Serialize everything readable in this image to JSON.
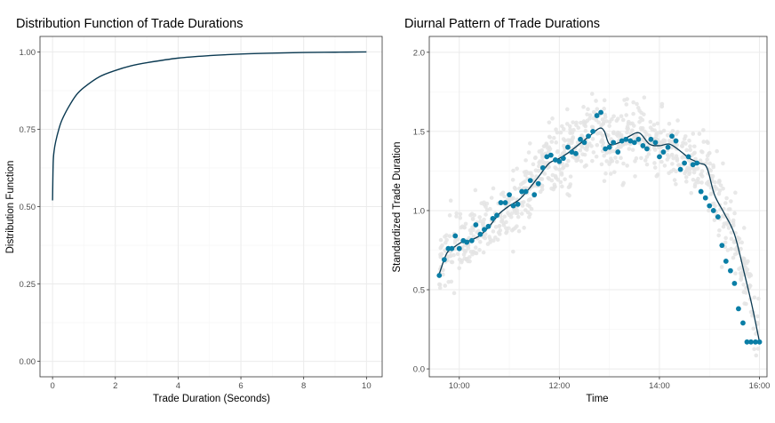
{
  "chart_data": [
    {
      "type": "line",
      "title": "Distribution Function of Trade Durations",
      "xlabel": "Trade Duration (Seconds)",
      "ylabel": "Distribution Function",
      "xlim": [
        -0.4,
        10.5
      ],
      "ylim": [
        -0.05,
        1.05
      ],
      "x_ticks": [
        0,
        2,
        4,
        6,
        8,
        10
      ],
      "x_tick_labels": [
        "0",
        "2",
        "4",
        "6",
        "8",
        "10"
      ],
      "y_ticks": [
        0,
        0.25,
        0.5,
        0.75,
        1.0
      ],
      "y_tick_labels": [
        "0.00",
        "0.25",
        "0.50",
        "0.75",
        "1.00"
      ],
      "grid": true,
      "line_color": "#0b3a52",
      "series": [
        {
          "x": [
            0,
            0.02,
            0.05,
            0.1,
            0.2,
            0.3,
            0.5,
            0.75,
            1,
            1.5,
            2,
            2.5,
            3,
            4,
            5,
            6,
            7,
            8,
            9,
            10
          ],
          "y": [
            0.52,
            0.64,
            0.68,
            0.71,
            0.75,
            0.78,
            0.82,
            0.86,
            0.885,
            0.92,
            0.94,
            0.955,
            0.965,
            0.98,
            0.988,
            0.993,
            0.996,
            0.998,
            0.999,
            1.0
          ]
        }
      ]
    },
    {
      "type": "scatter",
      "title": "Diurnal Pattern of Trade Durations",
      "xlabel": "Time",
      "ylabel": "Standardized Trade Duration",
      "xlim": [
        9.4,
        16.15
      ],
      "ylim": [
        -0.05,
        2.1
      ],
      "x_ticks": [
        10,
        12,
        14,
        16
      ],
      "x_tick_labels": [
        "10:00",
        "12:00",
        "14:00",
        "16:00"
      ],
      "y_ticks": [
        0,
        0.5,
        1.0,
        1.5,
        2.0
      ],
      "y_tick_labels": [
        "0.0",
        "0.5",
        "1.0",
        "1.5",
        "2.0"
      ],
      "grid": true,
      "point_color": "#0a7ea6",
      "line_color": "#0b3a52",
      "background_color": "#e4e4e4",
      "background_note_hidden": "",
      "series": [
        {
          "kind": "points",
          "x": [
            9.6,
            9.7,
            9.78,
            9.85,
            9.92,
            10.0,
            10.08,
            10.15,
            10.25,
            10.33,
            10.42,
            10.5,
            10.58,
            10.67,
            10.75,
            10.83,
            10.92,
            11.0,
            11.08,
            11.17,
            11.25,
            11.33,
            11.42,
            11.5,
            11.58,
            11.67,
            11.75,
            11.83,
            11.92,
            12.0,
            12.08,
            12.17,
            12.25,
            12.33,
            12.42,
            12.5,
            12.58,
            12.67,
            12.75,
            12.83,
            12.92,
            13.0,
            13.08,
            13.17,
            13.25,
            13.33,
            13.42,
            13.5,
            13.58,
            13.67,
            13.75,
            13.83,
            13.92,
            14.0,
            14.08,
            14.17,
            14.25,
            14.33,
            14.42,
            14.5,
            14.58,
            14.67,
            14.75,
            14.83,
            14.92,
            15.0,
            15.08,
            15.17,
            15.25,
            15.33,
            15.42,
            15.5,
            15.58,
            15.67,
            15.75,
            15.83,
            15.92,
            16.0
          ],
          "y": [
            0.59,
            0.69,
            0.76,
            0.76,
            0.84,
            0.76,
            0.81,
            0.8,
            0.81,
            0.91,
            0.85,
            0.88,
            0.9,
            0.95,
            0.97,
            1.05,
            1.05,
            1.1,
            1.03,
            1.04,
            1.12,
            1.12,
            1.19,
            1.1,
            1.17,
            1.27,
            1.34,
            1.35,
            1.32,
            1.31,
            1.33,
            1.4,
            1.37,
            1.36,
            1.45,
            1.43,
            1.47,
            1.5,
            1.6,
            1.62,
            1.39,
            1.4,
            1.43,
            1.37,
            1.44,
            1.45,
            1.44,
            1.43,
            1.45,
            1.41,
            1.39,
            1.45,
            1.43,
            1.34,
            1.37,
            1.4,
            1.47,
            1.44,
            1.26,
            1.3,
            1.34,
            1.29,
            1.3,
            1.12,
            1.08,
            1.03,
            1.0,
            0.96,
            0.78,
            0.68,
            0.62,
            0.54,
            0.38,
            0.29,
            0.17,
            0.17,
            0.17,
            0.17
          ]
        },
        {
          "kind": "smooth",
          "x": [
            9.6,
            9.75,
            9.9,
            10.05,
            10.2,
            10.4,
            10.6,
            10.8,
            11.0,
            11.2,
            11.4,
            11.6,
            11.8,
            12.0,
            12.2,
            12.4,
            12.6,
            12.8,
            12.9,
            13.0,
            13.2,
            13.4,
            13.6,
            13.8,
            14.0,
            14.2,
            14.4,
            14.6,
            14.8,
            14.95,
            15.1,
            15.3,
            15.5,
            15.7,
            15.85,
            16.0
          ],
          "y": [
            0.6,
            0.73,
            0.77,
            0.8,
            0.81,
            0.84,
            0.9,
            0.98,
            1.03,
            1.07,
            1.14,
            1.22,
            1.3,
            1.33,
            1.37,
            1.42,
            1.47,
            1.52,
            1.5,
            1.42,
            1.43,
            1.47,
            1.49,
            1.42,
            1.41,
            1.42,
            1.38,
            1.33,
            1.3,
            1.27,
            1.1,
            0.98,
            0.85,
            0.6,
            0.4,
            0.17
          ]
        }
      ]
    }
  ]
}
